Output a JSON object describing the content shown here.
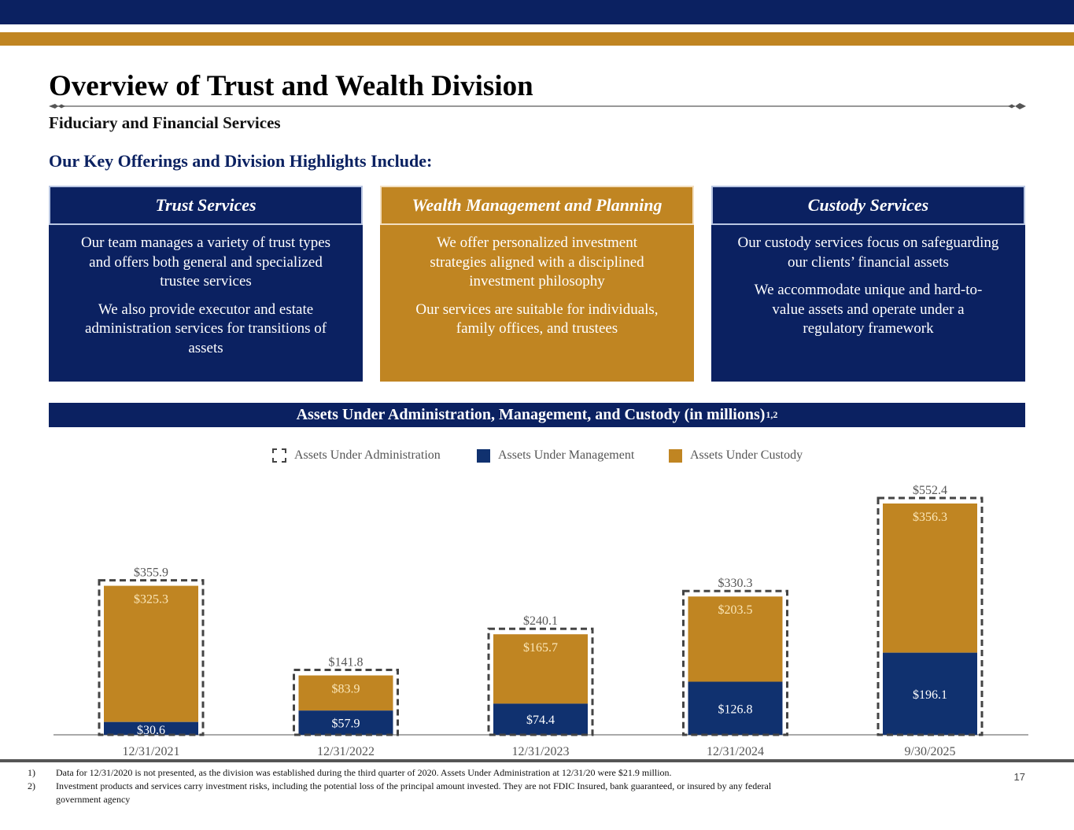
{
  "page": {
    "title": "Overview of Trust and Wealth Division",
    "subtitle": "Fiduciary and Financial Services",
    "highlights_heading": "Our Key Offerings and Division Highlights Include:",
    "page_number": "17"
  },
  "colors": {
    "navy": "#0b2161",
    "gold": "#c08522",
    "aum_bar": "#10316f",
    "auc_bar": "#c08522",
    "aua_outline": "#444444"
  },
  "cards": [
    {
      "title": "Trust Services",
      "paragraphs": [
        "Our team manages a variety of trust types and offers both general and specialized trustee services",
        "We also provide executor and estate administration services for transitions of assets"
      ]
    },
    {
      "title": "Wealth Management and Planning",
      "paragraphs": [
        "We offer personalized investment strategies aligned with a disciplined investment philosophy",
        "Our services are suitable for individuals, family offices, and trustees"
      ]
    },
    {
      "title": "Custody Services",
      "paragraphs": [
        "Our custody services focus on safeguarding our clients’ financial assets",
        "We accommodate unique and hard-to-value assets and operate under a regulatory framework"
      ]
    }
  ],
  "chart_data": {
    "type": "bar",
    "stacked": true,
    "title": "Assets Under Administration, Management, and Custody (in millions)",
    "title_superscript": "1,2",
    "xlabel": "",
    "ylabel": "",
    "ylim": [
      0,
      560
    ],
    "grid": false,
    "legend_position": "top-center",
    "categories": [
      "12/31/2021",
      "12/31/2022",
      "12/31/2023",
      "12/31/2024",
      "9/30/2025"
    ],
    "series": [
      {
        "name": "Assets Under Management",
        "values": [
          30.6,
          57.9,
          74.4,
          126.8,
          196.1
        ],
        "labels": [
          "$30.6",
          "$57.9",
          "$74.4",
          "$126.8",
          "$196.1"
        ]
      },
      {
        "name": "Assets Under Custody",
        "values": [
          325.3,
          83.9,
          165.7,
          203.5,
          356.3
        ],
        "labels": [
          "$325.3",
          "$83.9",
          "$165.7",
          "$203.5",
          "$356.3"
        ]
      }
    ],
    "totals": {
      "name": "Assets Under Administration",
      "values": [
        355.9,
        141.8,
        240.1,
        330.3,
        552.4
      ],
      "labels": [
        "$355.9",
        "$141.8",
        "$240.1",
        "$330.3",
        "$552.4"
      ]
    },
    "legend": [
      "Assets Under Administration",
      "Assets Under Management",
      "Assets Under Custody"
    ]
  },
  "footnotes": [
    {
      "num": "1)",
      "text": "Data for 12/31/2020 is not presented, as the division was established during the third quarter of 2020. Assets Under Administration at 12/31/20 were $21.9 million."
    },
    {
      "num": "2)",
      "text": "Investment products and services carry investment risks, including the potential loss of the principal amount invested. They are not FDIC Insured, bank guaranteed, or insured by any federal government agency"
    }
  ]
}
